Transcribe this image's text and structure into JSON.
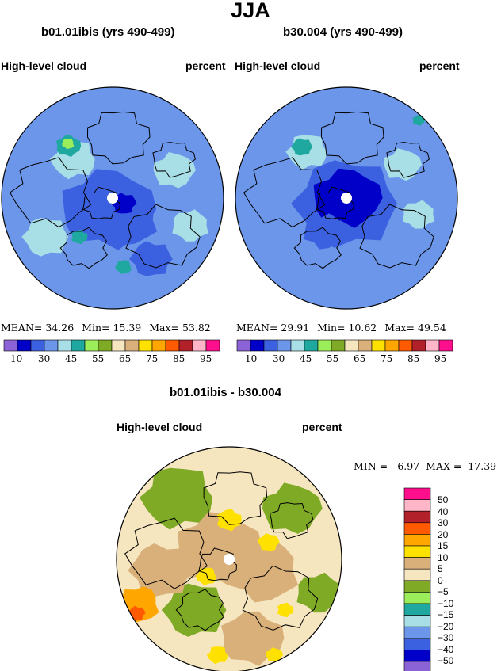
{
  "page": {
    "title": "JJA"
  },
  "palette": [
    "#8c63d6",
    "#0000c8",
    "#3b61e0",
    "#6b96ea",
    "#a8dee6",
    "#1fa8a0",
    "#9ced5a",
    "#7faa26",
    "#f6e6bf",
    "#d9b07a",
    "#ffe100",
    "#ffa600",
    "#ff5a00",
    "#b2202a",
    "#ffb6c8",
    "#ff0f8c"
  ],
  "panels": [
    {
      "title": "b01.01ibis (yrs 490-499)",
      "field": "High-level cloud",
      "units": "percent",
      "stats": {
        "mean_label": "MEAN=",
        "mean": "34.26",
        "min_label": "Min=",
        "min": "15.39",
        "max_label": "Max=",
        "max": "53.82"
      },
      "colorbar_labels": [
        "10",
        "30",
        "45",
        "55",
        "65",
        "75",
        "85",
        "95"
      ]
    },
    {
      "title": "b30.004 (yrs 490-499)",
      "field": "High-level cloud",
      "units": "percent",
      "stats": {
        "mean_label": "MEAN=",
        "mean": "29.91",
        "min_label": "Min=",
        "min": "10.62",
        "max_label": "Max=",
        "max": "49.54"
      },
      "colorbar_labels": [
        "10",
        "30",
        "45",
        "55",
        "65",
        "75",
        "85",
        "95"
      ]
    }
  ],
  "diff": {
    "title": "b01.01ibis - b30.004",
    "field": "High-level cloud",
    "units": "percent",
    "stats": {
      "min_label": "MIN =",
      "min": "-6.97",
      "max_label": "MAX =",
      "max": "17.39"
    },
    "colorbar_levels": [
      "50",
      "40",
      "30",
      "20",
      "15",
      "10",
      "5",
      "0",
      "−5",
      "−10",
      "−15",
      "−20",
      "−30",
      "−40",
      "−50"
    ],
    "colorbar_colors": [
      "#ff0f8c",
      "#ffb6c8",
      "#b2202a",
      "#ff5a00",
      "#ffa600",
      "#ffe100",
      "#d9b07a",
      "#f6e6bf",
      "#7faa26",
      "#9ced5a",
      "#1fa8a0",
      "#a8dee6",
      "#6b96ea",
      "#3b61e0",
      "#0000c8",
      "#8c63d6"
    ]
  },
  "chart_data": [
    {
      "type": "heatmap",
      "title": "b01.01ibis (yrs 490-499)",
      "variable": "High-level cloud",
      "units": "percent",
      "projection": "north polar stereographic",
      "mean": 34.26,
      "min": 15.39,
      "max": 53.82,
      "levels": [
        10,
        30,
        45,
        55,
        65,
        75,
        85,
        95
      ]
    },
    {
      "type": "heatmap",
      "title": "b30.004 (yrs 490-499)",
      "variable": "High-level cloud",
      "units": "percent",
      "projection": "north polar stereographic",
      "mean": 29.91,
      "min": 10.62,
      "max": 49.54,
      "levels": [
        10,
        30,
        45,
        55,
        65,
        75,
        85,
        95
      ]
    },
    {
      "type": "heatmap",
      "title": "b01.01ibis - b30.004",
      "variable": "High-level cloud",
      "units": "percent",
      "projection": "north polar stereographic",
      "min": -6.97,
      "max": 17.39,
      "levels": [
        -50,
        -40,
        -30,
        -20,
        -15,
        -10,
        -5,
        0,
        5,
        10,
        15,
        20,
        30,
        40,
        50
      ]
    }
  ]
}
